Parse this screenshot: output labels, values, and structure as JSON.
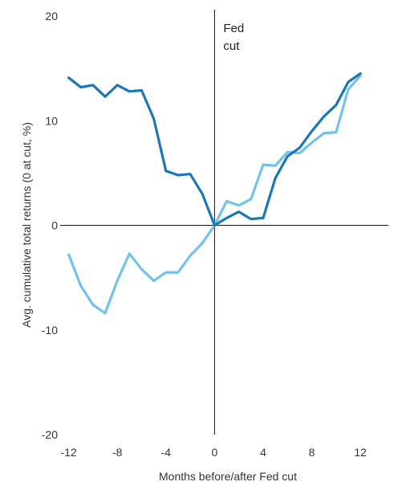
{
  "chart_data": {
    "type": "line",
    "title": "",
    "xlabel": "Months before/after Fed cut",
    "ylabel": "Avg. cumulative total returns (0 at cut, %)",
    "xlim": [
      -12.7,
      14.3
    ],
    "ylim": [
      -20,
      20
    ],
    "x_ticks": [
      -12,
      -8,
      -4,
      0,
      4,
      8,
      12
    ],
    "x_tick_labels": [
      "-12",
      "-8",
      "-4",
      "0",
      "4",
      "8",
      "12"
    ],
    "y_ticks": [
      20,
      10,
      0,
      -10,
      -20
    ],
    "y_tick_labels": [
      "20",
      "10",
      "0",
      "-10",
      "-20"
    ],
    "grid": false,
    "annotation": {
      "lines": [
        "Fed",
        "cut"
      ],
      "x": 0
    },
    "x": [
      -12,
      -11,
      -10,
      -9,
      -8,
      -7,
      -6,
      -5,
      -4,
      -3,
      -2,
      -1,
      0,
      1,
      2,
      3,
      4,
      5,
      6,
      7,
      8,
      9,
      10,
      11,
      12
    ],
    "series": [
      {
        "color": "#1b78b4",
        "values": [
          14.1,
          13.2,
          13.4,
          12.3,
          13.4,
          12.8,
          12.9,
          10.2,
          5.2,
          4.8,
          4.9,
          3.0,
          0.0,
          0.7,
          1.3,
          0.6,
          0.7,
          4.5,
          6.6,
          7.4,
          9.0,
          10.4,
          11.5,
          13.7,
          14.5
        ]
      },
      {
        "color": "#72c3e7",
        "values": [
          -2.8,
          -5.8,
          -7.6,
          -8.4,
          -5.3,
          -2.7,
          -4.2,
          -5.3,
          -4.5,
          -4.5,
          -2.9,
          -1.7,
          0.0,
          2.3,
          1.9,
          2.5,
          5.8,
          5.7,
          7.0,
          6.9,
          7.9,
          8.8,
          8.9,
          13.0,
          14.3
        ]
      }
    ]
  }
}
